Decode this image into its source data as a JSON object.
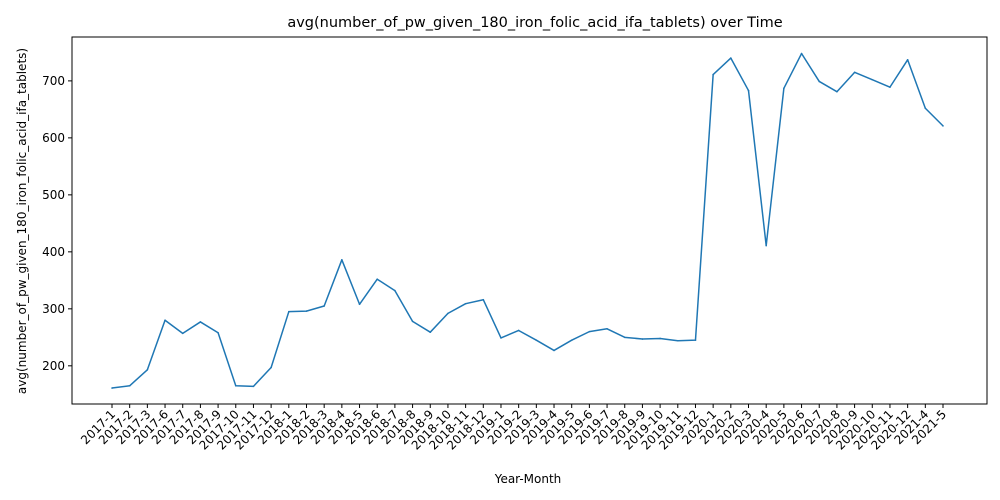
{
  "chart_data": {
    "type": "line",
    "title": "avg(number_of_pw_given_180_iron_folic_acid_ifa_tablets) over Time",
    "xlabel": "Year-Month",
    "ylabel": "avg(number_of_pw_given_180_iron_folic_acid_ifa_tablets)",
    "categories": [
      "2017-1",
      "2017-2",
      "2017-3",
      "2017-6",
      "2017-7",
      "2017-8",
      "2017-9",
      "2017-10",
      "2017-11",
      "2017-12",
      "2018-1",
      "2018-2",
      "2018-3",
      "2018-4",
      "2018-5",
      "2018-6",
      "2018-7",
      "2018-8",
      "2018-9",
      "2018-10",
      "2018-11",
      "2018-12",
      "2019-1",
      "2019-2",
      "2019-3",
      "2019-4",
      "2019-5",
      "2019-6",
      "2019-7",
      "2019-8",
      "2019-9",
      "2019-10",
      "2019-11",
      "2019-12",
      "2020-1",
      "2020-2",
      "2020-3",
      "2020-4",
      "2020-5",
      "2020-6",
      "2020-7",
      "2020-8",
      "2020-9",
      "2020-10",
      "2020-11",
      "2020-12",
      "2021-4",
      "2021-5"
    ],
    "series": [
      {
        "values": [
          161,
          165,
          193,
          280,
          257,
          277,
          258,
          165,
          164,
          197,
          295,
          296,
          305,
          386,
          308,
          352,
          332,
          278,
          259,
          292,
          309,
          316,
          249,
          262,
          245,
          227,
          245,
          260,
          265,
          250,
          247,
          248,
          244,
          245,
          711,
          740,
          683,
          411,
          687,
          748,
          699,
          681,
          715,
          702,
          689,
          737,
          652,
          621
        ]
      }
    ],
    "yticks": [
      200,
      300,
      400,
      500,
      600,
      700
    ],
    "ylim": [
      133,
      777
    ],
    "grid": false,
    "line_color": "#1f77b4"
  }
}
